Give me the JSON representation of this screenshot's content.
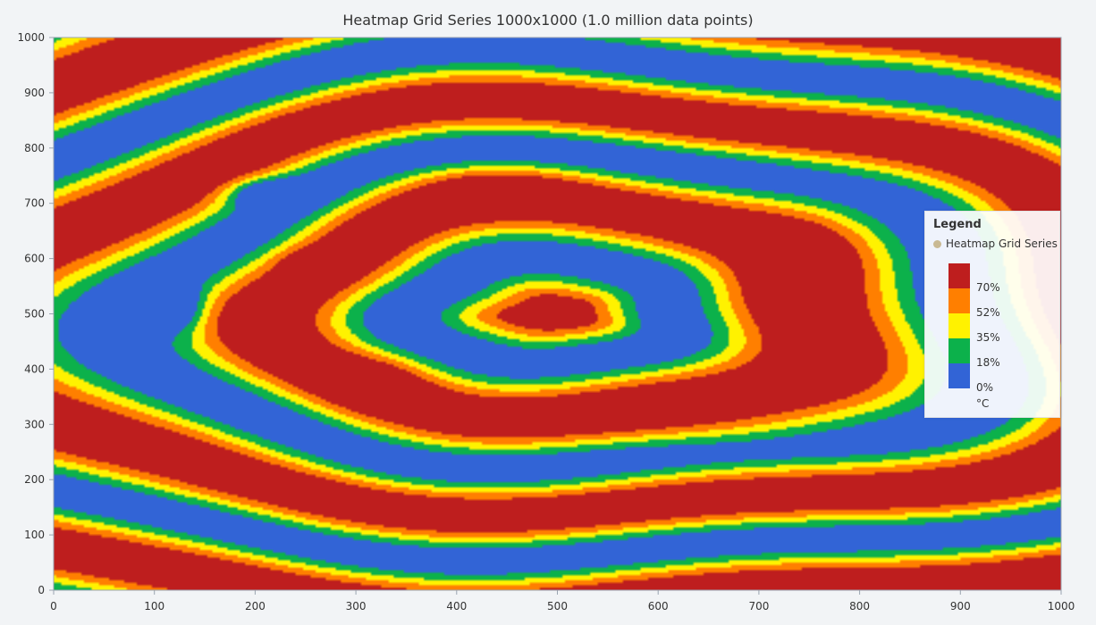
{
  "chart_data": {
    "type": "heatmap",
    "title": "Heatmap Grid Series 1000x1000 (1.0 million data points)",
    "xlim": [
      0,
      1000
    ],
    "ylim": [
      0,
      1000
    ],
    "x_ticks": [
      0,
      100,
      200,
      300,
      400,
      500,
      600,
      700,
      800,
      900,
      1000
    ],
    "y_ticks": [
      0,
      100,
      200,
      300,
      400,
      500,
      600,
      700,
      800,
      900,
      1000
    ],
    "grid": false,
    "series_name": "Heatmap Grid Series",
    "legend": {
      "title": "Legend",
      "placement": "right",
      "unit": "°C",
      "stops": [
        {
          "label": "0%",
          "color": "#3264d6"
        },
        {
          "label": "18%",
          "color": "#0cb14b"
        },
        {
          "label": "35%",
          "color": "#fff200"
        },
        {
          "label": "52%",
          "color": "#ff7f00"
        },
        {
          "label": "70%",
          "color": "#be1e1e"
        }
      ]
    },
    "palette": [
      "#3264d6",
      "#0cb14b",
      "#fff200",
      "#ff7f00",
      "#be1e1e"
    ]
  }
}
